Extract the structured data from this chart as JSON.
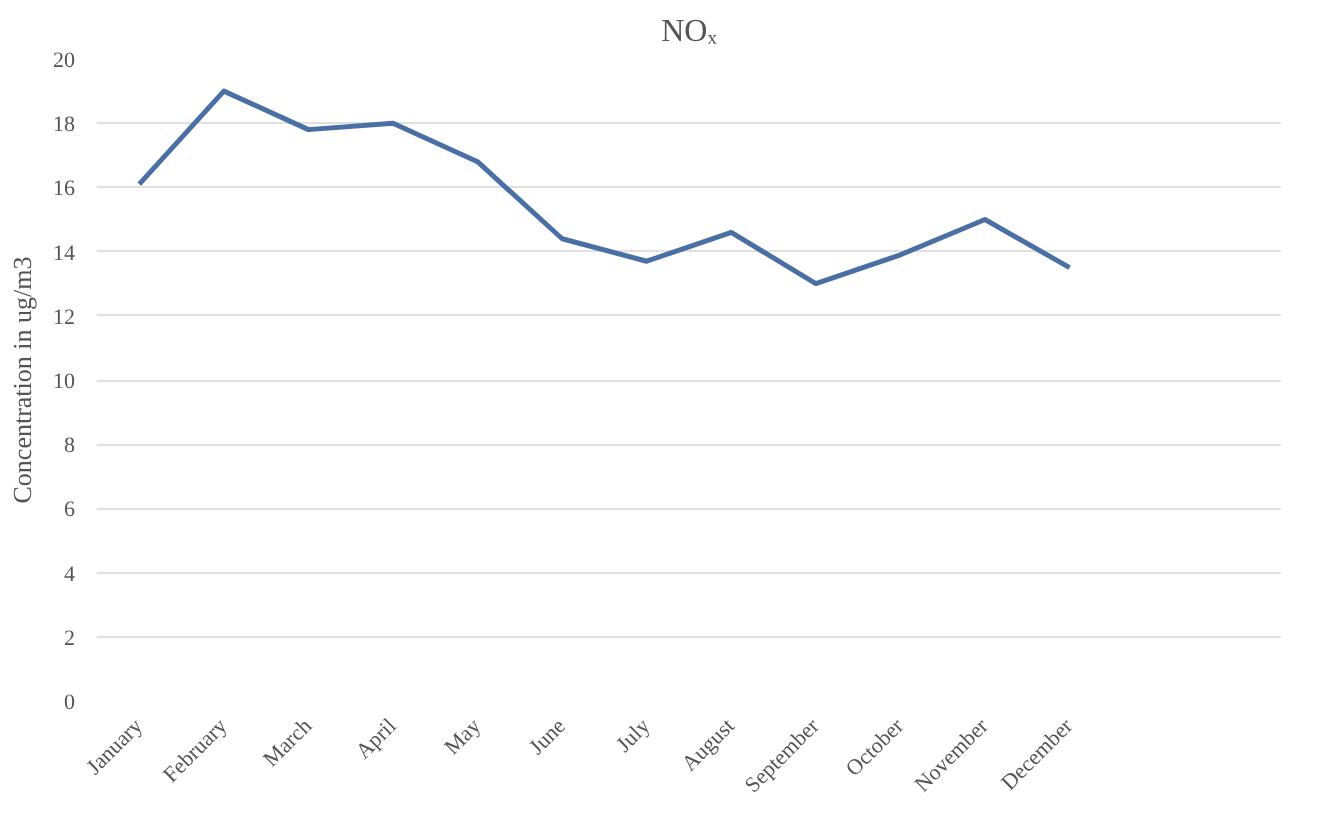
{
  "chart_data": {
    "type": "line",
    "title": "NOₓ",
    "ylabel": "Concentration in ug/m3",
    "categories": [
      "January",
      "February",
      "March",
      "April",
      "May",
      "June",
      "July",
      "August",
      "September",
      "October",
      "November",
      "December",
      null,
      null
    ],
    "series": [
      {
        "color": "#4a6fa5",
        "values": [
          16.1,
          19.0,
          17.8,
          18.0,
          16.8,
          14.4,
          13.7,
          14.6,
          13.0,
          13.9,
          15.0,
          13.5,
          null,
          null
        ]
      }
    ],
    "ylim": [
      0,
      20
    ],
    "yticks": [
      0,
      2,
      4,
      6,
      8,
      10,
      12,
      14,
      16,
      18,
      20
    ],
    "grid": "y",
    "marker": "none",
    "line_style": "solid"
  }
}
